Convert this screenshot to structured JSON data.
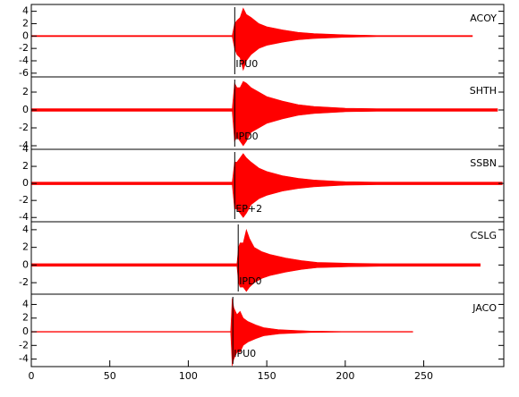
{
  "chart_data": {
    "type": "area",
    "color": "#ff0000",
    "xlim": [
      0,
      301
    ],
    "xticks": [
      0,
      50,
      100,
      150,
      200,
      250
    ],
    "panels": [
      {
        "station": "ACOY",
        "pick_label": "IPU0",
        "pick_time": 129.6,
        "ylim": [
          -6.6,
          5.1
        ],
        "yticks": [
          4,
          2,
          0,
          -2,
          -4,
          -6
        ],
        "x": [
          0,
          128,
          129.5,
          131,
          133,
          135,
          137,
          140,
          145,
          150,
          160,
          170,
          180,
          200,
          220,
          281
        ],
        "upper": [
          0.1,
          0.1,
          2.0,
          2.5,
          3.0,
          4.5,
          3.5,
          3.0,
          2.0,
          1.5,
          1.0,
          0.6,
          0.4,
          0.2,
          0.1,
          0.1
        ],
        "lower": [
          -0.1,
          -0.1,
          -2.0,
          -3.0,
          -3.5,
          -5.5,
          -4.0,
          -3.0,
          -2.0,
          -1.5,
          -1.0,
          -0.6,
          -0.4,
          -0.2,
          -0.1,
          -0.1
        ]
      },
      {
        "station": "SHTH",
        "pick_label": "IPD0",
        "pick_time": 129.6,
        "ylim": [
          -4.4,
          3.7
        ],
        "yticks": [
          2,
          0,
          -2,
          -4
        ],
        "x": [
          0,
          128,
          129.5,
          131,
          133,
          135,
          137,
          140,
          145,
          150,
          160,
          170,
          180,
          200,
          220,
          297
        ],
        "upper": [
          0.15,
          0.15,
          3.0,
          2.5,
          2.5,
          3.2,
          3.0,
          2.5,
          2.0,
          1.5,
          1.0,
          0.6,
          0.4,
          0.2,
          0.15,
          0.15
        ],
        "lower": [
          -0.15,
          -0.15,
          -3.5,
          -3.0,
          -3.5,
          -4.0,
          -3.5,
          -2.5,
          -2.0,
          -1.5,
          -1.0,
          -0.6,
          -0.4,
          -0.2,
          -0.15,
          -0.15
        ]
      },
      {
        "station": "SSBN",
        "pick_label": "EP+2",
        "pick_time": 129.6,
        "ylim": [
          -4.5,
          4.0
        ],
        "yticks": [
          4,
          2,
          0,
          -2,
          -4
        ],
        "x": [
          0,
          128,
          129.5,
          131,
          133,
          135,
          137,
          140,
          145,
          150,
          160,
          170,
          180,
          200,
          220,
          300
        ],
        "upper": [
          0.15,
          0.15,
          2.5,
          2.5,
          3.0,
          3.5,
          3.0,
          2.5,
          1.8,
          1.4,
          0.9,
          0.6,
          0.4,
          0.2,
          0.15,
          0.15
        ],
        "lower": [
          -0.15,
          -0.15,
          -3.0,
          -3.0,
          -3.5,
          -4.0,
          -3.5,
          -2.5,
          -1.8,
          -1.4,
          -0.9,
          -0.6,
          -0.4,
          -0.2,
          -0.15,
          -0.15
        ]
      },
      {
        "station": "CSLG",
        "pick_label": "IPD0",
        "pick_time": 131.8,
        "ylim": [
          -3.3,
          4.9
        ],
        "yticks": [
          4,
          2,
          0,
          -2
        ],
        "x": [
          0,
          131,
          132,
          133,
          135,
          137,
          139,
          142,
          147,
          152,
          162,
          172,
          182,
          202,
          222,
          286
        ],
        "upper": [
          0.15,
          0.15,
          2.0,
          2.5,
          2.5,
          4.0,
          3.0,
          2.0,
          1.5,
          1.2,
          0.8,
          0.5,
          0.3,
          0.2,
          0.15,
          0.15
        ],
        "lower": [
          -0.15,
          -0.15,
          -2.0,
          -2.5,
          -2.5,
          -3.0,
          -2.5,
          -2.0,
          -1.5,
          -1.2,
          -0.8,
          -0.5,
          -0.3,
          -0.2,
          -0.15,
          -0.15
        ]
      },
      {
        "station": "JACO",
        "pick_label": "IPU0",
        "pick_time": 128.4,
        "ylim": [
          -5.1,
          5.5
        ],
        "yticks": [
          4,
          2,
          0,
          -2,
          -4
        ],
        "x": [
          0,
          127,
          128,
          129,
          131,
          133,
          135,
          138,
          143,
          148,
          158,
          168,
          178,
          198,
          218,
          243
        ],
        "upper": [
          0.05,
          0.05,
          4.9,
          3.5,
          2.5,
          3.0,
          2.0,
          1.5,
          1.0,
          0.6,
          0.3,
          0.2,
          0.1,
          0.05,
          0.05,
          0.05
        ],
        "lower": [
          -0.05,
          -0.05,
          -5.0,
          -4.0,
          -3.0,
          -3.0,
          -2.0,
          -1.5,
          -1.0,
          -0.6,
          -0.3,
          -0.2,
          -0.1,
          -0.05,
          -0.05,
          -0.05
        ]
      }
    ]
  }
}
